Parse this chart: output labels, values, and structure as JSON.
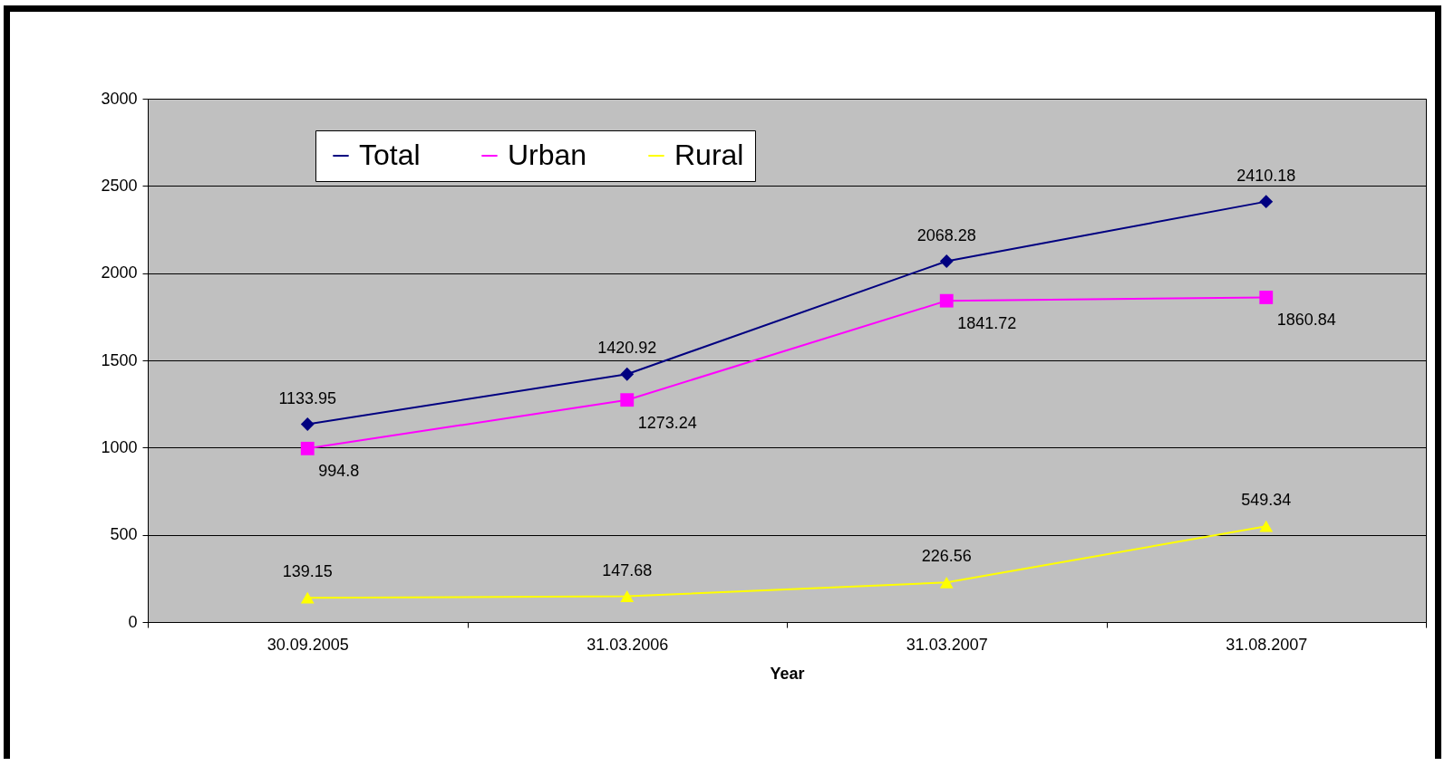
{
  "chart_data": {
    "type": "line",
    "xlabel": "Year",
    "categories": [
      "30.09.2005",
      "31.03.2006",
      "31.03.2007",
      "31.08.2007"
    ],
    "series": [
      {
        "name": "Total",
        "color": "#000080",
        "marker": "diamond",
        "values": [
          1133.95,
          1420.92,
          2068.28,
          2410.18
        ]
      },
      {
        "name": "Urban",
        "color": "#ff00ff",
        "marker": "square",
        "values": [
          994.8,
          1273.24,
          1841.72,
          1860.84
        ]
      },
      {
        "name": "Rural",
        "color": "#ffff00",
        "marker": "triangle",
        "values": [
          139.15,
          147.68,
          226.56,
          549.34
        ]
      }
    ],
    "ylim": [
      0,
      3000
    ],
    "yticks": [
      0,
      500,
      1000,
      1500,
      2000,
      2500,
      3000
    ],
    "grid": "y",
    "legend": "top",
    "data_labels": true
  }
}
